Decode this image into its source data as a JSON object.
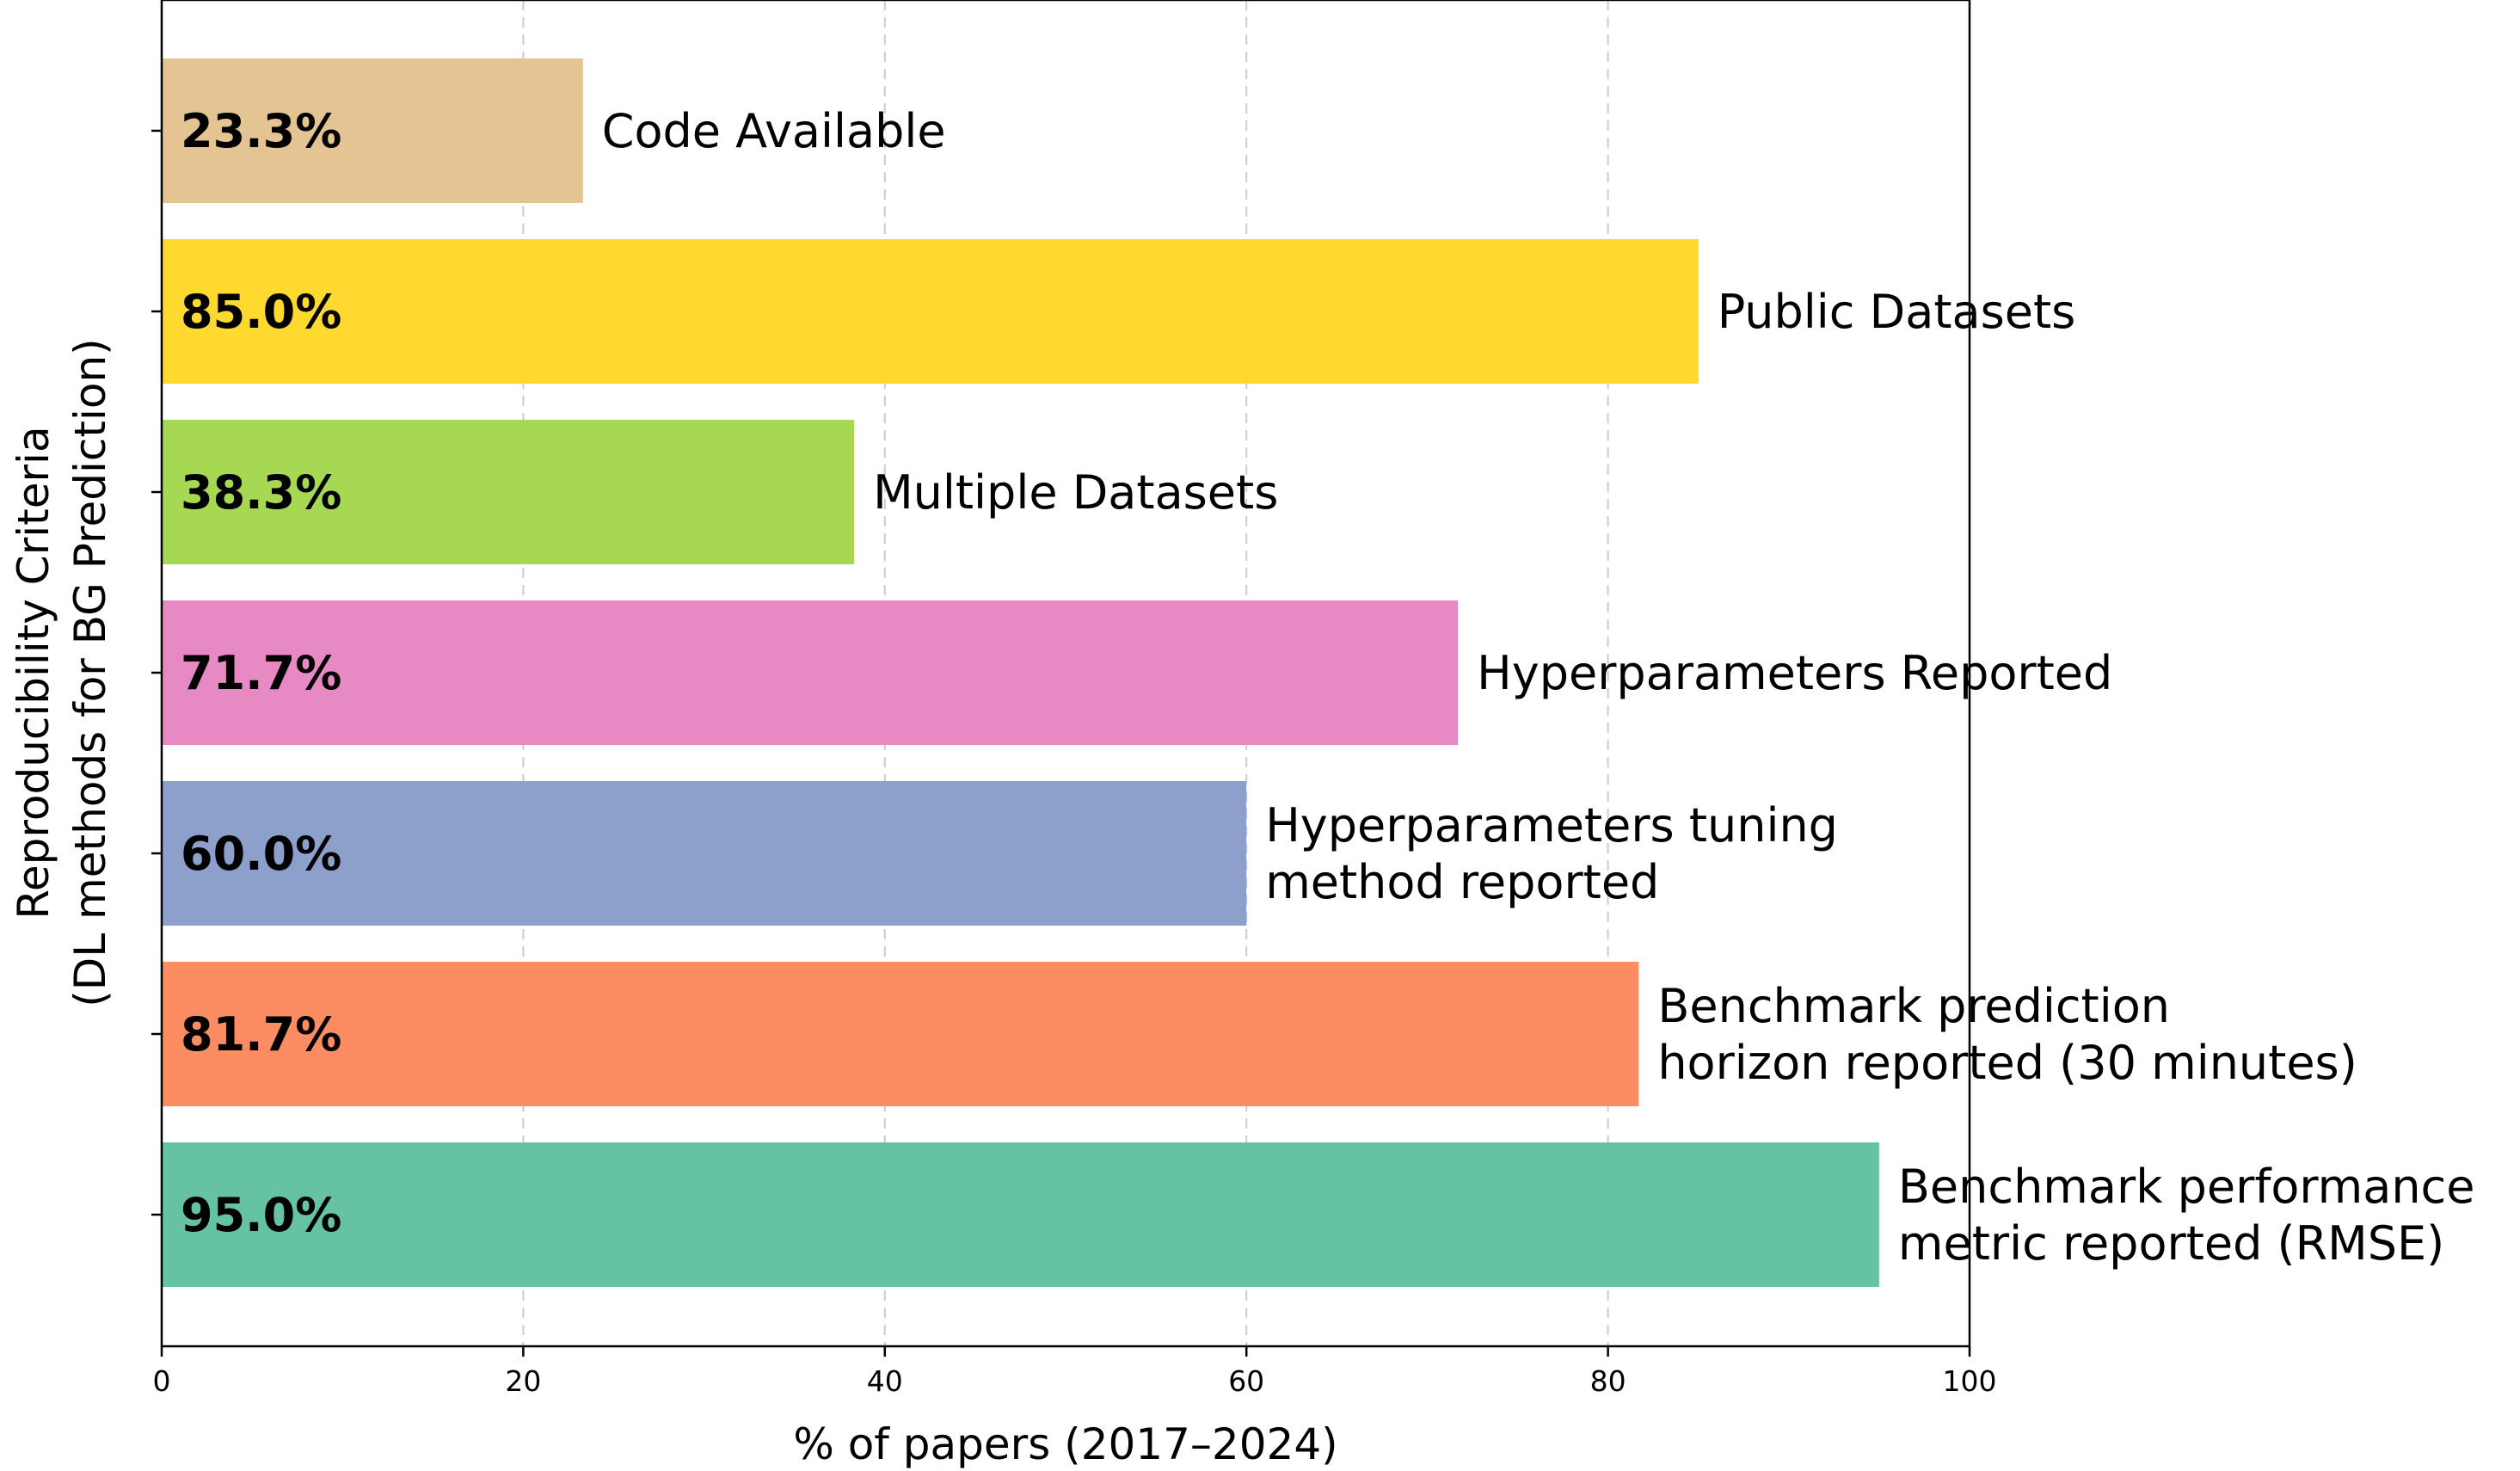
{
  "chart_data": {
    "type": "bar",
    "orientation": "horizontal",
    "categories": [
      [
        "Code Available"
      ],
      [
        "Public Datasets"
      ],
      [
        "Multiple Datasets"
      ],
      [
        "Hyperparameters Reported"
      ],
      [
        "Hyperparameters tuning",
        "method reported"
      ],
      [
        "Benchmark prediction",
        "horizon reported (30 minutes)"
      ],
      [
        "Benchmark performance",
        "metric reported (RMSE)"
      ]
    ],
    "values": [
      23.3,
      85.0,
      38.3,
      71.7,
      60.0,
      81.7,
      95.0
    ],
    "value_labels": [
      "23.3%",
      "85.0%",
      "38.3%",
      "71.7%",
      "60.0%",
      "81.7%",
      "95.0%"
    ],
    "colors": [
      "#e5c494",
      "#ffd92f",
      "#a6d854",
      "#e78ac3",
      "#8da0cb",
      "#fc8d62",
      "#66c2a5"
    ],
    "xlabel": "% of papers (2017–2024)",
    "ylabel": [
      "Reproducibility Criteria",
      "(DL methods for BG Prediction)"
    ],
    "xlim": [
      0,
      100
    ],
    "xticks": [
      0,
      20,
      40,
      60,
      80,
      100
    ],
    "grid": "x-axis dashed",
    "legend": "none"
  }
}
